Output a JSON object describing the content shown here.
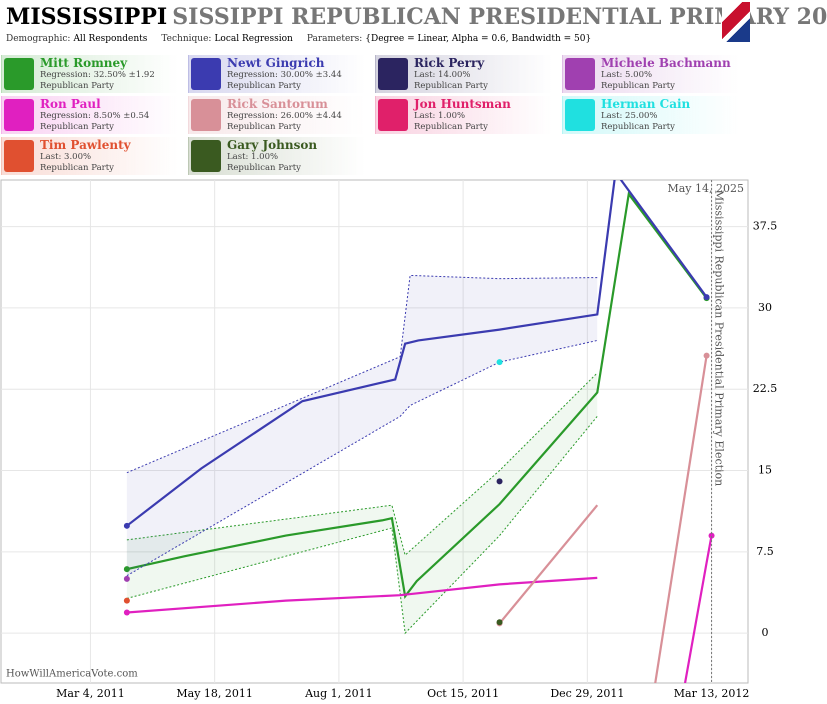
{
  "chart_data": {
    "type": "line",
    "title": "MISSISSIPPI",
    "subtitle": "SISSIPPI REPUBLICAN PRESIDENTIAL PRIMARY 20",
    "params": [
      {
        "label": "Demographic:",
        "value": "All Respondents"
      },
      {
        "label": "Technique:",
        "value": "Local Regression"
      },
      {
        "label": "Parameters:",
        "value": "{Degree = Linear, Alpha = 0.6, Bandwidth = 50}"
      }
    ],
    "date_label": "May 14, 2025",
    "source": "HowWillAmericaVote.com",
    "annotation": {
      "text": "Mississippi Republican Presidential Primary Election",
      "x": "2012-03-13"
    },
    "xlim": [
      "2011-01-09",
      "2012-04-04"
    ],
    "xticks": [
      {
        "value": "2011-03-04",
        "label": "Mar 4, 2011"
      },
      {
        "value": "2011-05-18",
        "label": "May 18, 2011"
      },
      {
        "value": "2011-08-01",
        "label": "Aug 1, 2011"
      },
      {
        "value": "2011-10-15",
        "label": "Oct 15, 2011"
      },
      {
        "value": "2011-12-29",
        "label": "Dec 29, 2011"
      },
      {
        "value": "2012-03-13",
        "label": "Mar 13, 2012"
      }
    ],
    "ylim": [
      -4.6,
      41.8
    ],
    "yticks": [
      0,
      7.5,
      15,
      22.5,
      30,
      37.5
    ],
    "series": [
      {
        "name": "Mitt Romney",
        "color": "#2a9a2a",
        "detail": "Regression: 32.50% ±1.92",
        "party": "Republican Party",
        "x": [
          "2011-03-26",
          "2011-04-30",
          "2011-06-30",
          "2011-08-27",
          "2011-09-02",
          "2011-09-10",
          "2011-09-17",
          "2011-11-06",
          "2012-01-04",
          "2012-01-23",
          "2012-03-10"
        ],
        "values": [
          5.9,
          7.1,
          9.0,
          10.4,
          10.6,
          3.4,
          4.8,
          11.9,
          22.2,
          40.5,
          30.9
        ],
        "band": {
          "x": [
            "2011-03-26",
            "2011-09-02",
            "2011-09-10",
            "2011-11-06",
            "2012-01-04"
          ],
          "lower": [
            3.2,
            9.7,
            0,
            9,
            20
          ],
          "upper": [
            8.6,
            11.8,
            7.2,
            15,
            24
          ]
        }
      },
      {
        "name": "Newt Gingrich",
        "color": "#3b3bb0",
        "detail": "Regression: 30.00% ±3.44",
        "party": "Republican Party",
        "x": [
          "2011-03-26",
          "2011-05-10",
          "2011-07-10",
          "2011-09-04",
          "2011-09-10",
          "2011-09-18",
          "2011-11-06",
          "2012-01-04",
          "2012-01-15",
          "2012-03-10"
        ],
        "values": [
          9.9,
          15.2,
          21.4,
          23.4,
          26.7,
          27.0,
          28.0,
          29.4,
          42.5,
          31
        ],
        "band": {
          "x": [
            "2011-03-26",
            "2011-09-07",
            "2011-09-13",
            "2011-11-06",
            "2012-01-04"
          ],
          "lower": [
            5.3,
            20,
            21,
            25,
            27
          ],
          "upper": [
            14.8,
            25.5,
            33,
            32.7,
            32.8
          ]
        }
      },
      {
        "name": "Rick Perry",
        "color": "#2b2460",
        "detail": "Last: 14.00%",
        "party": "Republican Party",
        "x": [
          "2011-11-06"
        ],
        "values": [
          14
        ]
      },
      {
        "name": "Michele Bachmann",
        "color": "#a040b0",
        "detail": "Last: 5.00%",
        "party": "Republican Party",
        "x": [
          "2011-03-26"
        ],
        "values": [
          5
        ]
      },
      {
        "name": "Ron Paul",
        "color": "#e020c0",
        "detail": "Regression: 8.50% ±0.54",
        "party": "Republican Party",
        "x": [
          "2011-03-26",
          "2011-06-30",
          "2011-09-07",
          "2011-11-06",
          "2012-01-04",
          "2012-01-06",
          "2012-02-26",
          "2012-03-10",
          "2012-03-13"
        ],
        "values": [
          1.9,
          3.0,
          3.5,
          4.5,
          5.1,
          null,
          -4.6,
          6.5,
          9
        ]
      },
      {
        "name": "Rick Santorum",
        "color": "#d89098",
        "detail": "Regression: 26.00% ±4.44",
        "party": "Republican Party",
        "x": [
          "2011-11-06",
          "2012-01-04",
          "2012-01-06",
          "2012-02-08",
          "2012-03-10"
        ],
        "values": [
          0.9,
          11.8,
          null,
          -4.6,
          25.6
        ]
      },
      {
        "name": "Jon Huntsman",
        "color": "#e0206a",
        "detail": "Last: 1.00%",
        "party": "Republican Party"
      },
      {
        "name": "Herman Cain",
        "color": "#20e0e0",
        "detail": "Last: 25.00%",
        "party": "Republican Party",
        "x": [
          "2011-11-06"
        ],
        "values": [
          25
        ]
      },
      {
        "name": "Tim Pawlenty",
        "color": "#e05030",
        "detail": "Last: 3.00%",
        "party": "Republican Party",
        "x": [
          "2011-03-26"
        ],
        "values": [
          3
        ]
      },
      {
        "name": "Gary Johnson",
        "color": "#3a5a20",
        "detail": "Last: 1.00%",
        "party": "Republican Party",
        "x": [
          "2011-11-06"
        ],
        "values": [
          1
        ]
      }
    ]
  }
}
